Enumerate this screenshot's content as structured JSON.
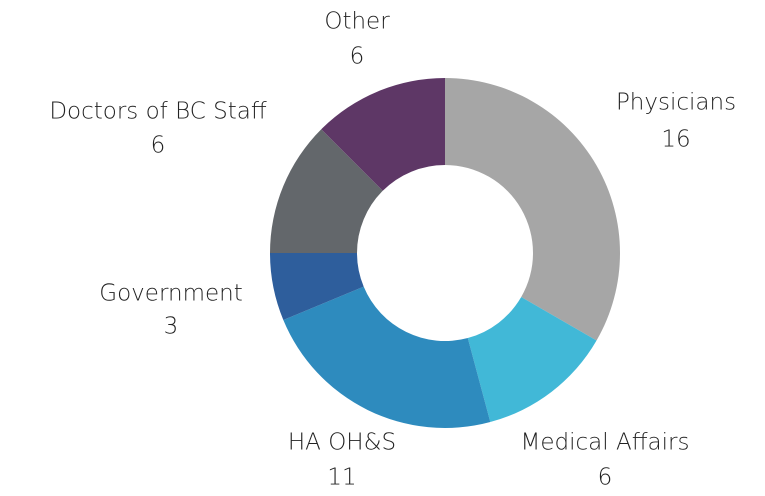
{
  "chart_data": {
    "type": "donut",
    "categories": [
      "Physicians",
      "Medical Affairs",
      "HA OH&S",
      "Government",
      "Doctors of BC Staff",
      "Other"
    ],
    "values": [
      16,
      6,
      11,
      3,
      6,
      6
    ],
    "colors": [
      "#a6a6a6",
      "#41b8d7",
      "#2e8bbe",
      "#2e5e9c",
      "#63676b",
      "#5e3766"
    ]
  }
}
